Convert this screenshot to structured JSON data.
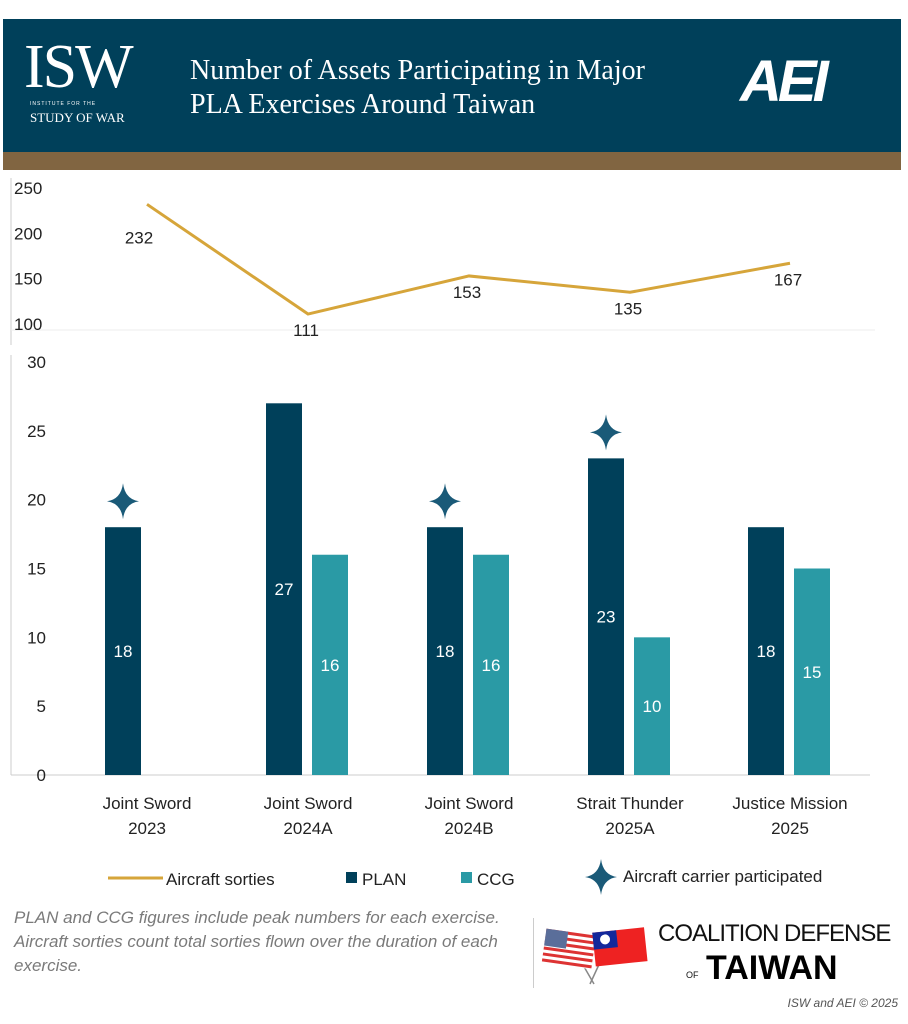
{
  "header": {
    "title_line1": "Number of Assets Participating in Major",
    "title_line2": "PLA Exercises Around Taiwan",
    "isw_logo": "ISW",
    "isw_sub1": "INSTITUTE FOR THE",
    "isw_sub2": "STUDY OF WAR",
    "aei_logo": "AEI"
  },
  "colors": {
    "header": "#00405a",
    "band": "#816541",
    "sorties": "#d6a53a",
    "plan": "#00405a",
    "ccg": "#2a9aa5"
  },
  "chart_data": [
    {
      "type": "line",
      "categories": [
        "Joint Sword 2023",
        "Joint Sword 2024A",
        "Joint Sword 2024B",
        "Strait Thunder 2025A",
        "Justice Mission 2025"
      ],
      "series": [
        {
          "name": "Aircraft sorties",
          "values": [
            232,
            111,
            153,
            135,
            167
          ]
        }
      ],
      "ylim": [
        100,
        250
      ],
      "yticks": [
        100,
        150,
        200,
        250
      ],
      "grid": false
    },
    {
      "type": "bar",
      "categories": [
        [
          "Joint Sword",
          "2023"
        ],
        [
          "Joint Sword",
          "2024A"
        ],
        [
          "Joint Sword",
          "2024B"
        ],
        [
          "Strait Thunder",
          "2025A"
        ],
        [
          "Justice Mission",
          "2025"
        ]
      ],
      "series": [
        {
          "name": "PLAN",
          "values": [
            18,
            27,
            18,
            23,
            18
          ]
        },
        {
          "name": "CCG",
          "values": [
            null,
            16,
            16,
            10,
            15
          ]
        }
      ],
      "carrier_participated": [
        true,
        false,
        true,
        true,
        false
      ],
      "ylim": [
        0,
        30
      ],
      "yticks": [
        0,
        5,
        10,
        15,
        20,
        25,
        30
      ],
      "grid": false,
      "legend": "bottom"
    }
  ],
  "legend": {
    "sorties": "Aircraft sorties",
    "plan": "PLAN",
    "ccg": "CCG",
    "carrier": "Aircraft carrier participated"
  },
  "note": "PLAN and CCG figures include peak numbers for each exercise. Aircraft sorties count total sorties flown over the duration of each exercise.",
  "logo": {
    "line1": "COALITION DEFENSE",
    "of": "OF",
    "line2": "TAIWAN"
  },
  "copyright": "ISW and AEI © 2025"
}
